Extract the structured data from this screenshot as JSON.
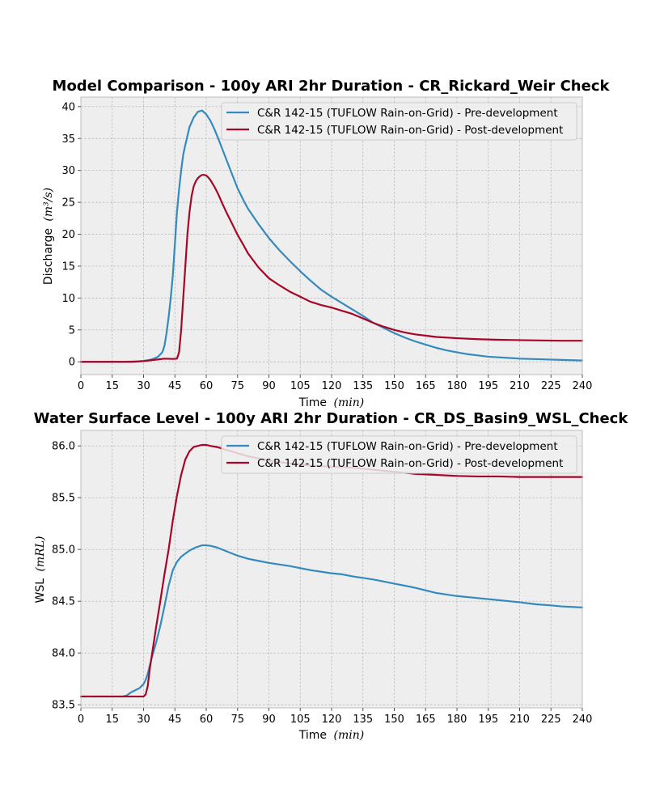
{
  "colors": {
    "pre": "#348abd",
    "post": "#a60628"
  },
  "chart_data": [
    {
      "type": "line",
      "title": "Model Comparison - 100y ARI 2hr Duration - CR_Rickard_Weir Check",
      "xlabel": "Time",
      "xlabel_unit": "(min)",
      "ylabel": "Discharge",
      "ylabel_unit": "(m³/s)",
      "xlim": [
        0,
        240
      ],
      "ylim": [
        -2,
        41.5
      ],
      "xticks": [
        0,
        15,
        30,
        45,
        60,
        75,
        90,
        105,
        120,
        135,
        150,
        165,
        180,
        195,
        210,
        225,
        240
      ],
      "yticks": [
        0,
        5,
        10,
        15,
        20,
        25,
        30,
        35,
        40
      ],
      "ytick_labels": [
        "0",
        "5",
        "10",
        "15",
        "20",
        "25",
        "30",
        "35",
        "40"
      ],
      "grid": true,
      "legend_position": "top-right",
      "series": [
        {
          "name": "C&R 142-15 (TUFLOW Rain-on-Grid) - Pre-development",
          "color_key": "pre",
          "x": [
            0,
            20,
            25,
            28,
            30,
            33,
            35,
            37,
            39,
            40,
            41,
            42,
            43,
            44,
            45,
            46,
            47,
            48,
            49,
            50,
            52,
            54,
            56,
            58,
            60,
            62,
            64,
            66,
            68,
            70,
            72,
            75,
            78,
            80,
            85,
            90,
            95,
            100,
            105,
            110,
            115,
            120,
            125,
            130,
            135,
            140,
            145,
            150,
            155,
            160,
            165,
            170,
            175,
            180,
            185,
            190,
            195,
            200,
            210,
            220,
            230,
            240
          ],
          "y": [
            0,
            0,
            0.05,
            0.1,
            0.15,
            0.3,
            0.5,
            0.8,
            1.5,
            2.5,
            4.5,
            7,
            10,
            13.5,
            18.5,
            23.5,
            27,
            30,
            32.5,
            34,
            36.8,
            38.3,
            39.2,
            39.4,
            38.8,
            37.8,
            36.4,
            34.8,
            33.1,
            31.4,
            29.7,
            27.2,
            25.2,
            24,
            21.6,
            19.4,
            17.5,
            15.8,
            14.2,
            12.7,
            11.3,
            10.2,
            9.2,
            8.2,
            7.2,
            6.1,
            5.3,
            4.5,
            3.8,
            3.2,
            2.7,
            2.2,
            1.8,
            1.5,
            1.2,
            1,
            0.8,
            0.7,
            0.5,
            0.4,
            0.3,
            0.2
          ]
        },
        {
          "name": "C&R 142-15 (TUFLOW Rain-on-Grid) - Post-development",
          "color_key": "post",
          "x": [
            0,
            25,
            30,
            35,
            40,
            44,
            46,
            47,
            48,
            49,
            50,
            51,
            52,
            53,
            54,
            55,
            56,
            57,
            58,
            59,
            60,
            61,
            62,
            64,
            66,
            68,
            70,
            72,
            75,
            78,
            80,
            85,
            90,
            95,
            100,
            105,
            110,
            115,
            120,
            125,
            130,
            135,
            140,
            145,
            150,
            155,
            160,
            165,
            170,
            180,
            190,
            200,
            210,
            220,
            230,
            240
          ],
          "y": [
            0,
            0,
            0.1,
            0.3,
            0.5,
            0.45,
            0.5,
            1.5,
            5,
            10,
            15,
            20,
            23.5,
            26,
            27.5,
            28.3,
            28.8,
            29.1,
            29.3,
            29.3,
            29.2,
            28.9,
            28.5,
            27.4,
            26.1,
            24.6,
            23.2,
            21.9,
            19.9,
            18.2,
            17,
            14.8,
            13.1,
            12,
            11,
            10.2,
            9.4,
            8.9,
            8.5,
            8,
            7.5,
            6.8,
            6.1,
            5.5,
            5,
            4.6,
            4.3,
            4.1,
            3.9,
            3.7,
            3.55,
            3.45,
            3.4,
            3.35,
            3.3,
            3.3
          ]
        }
      ]
    },
    {
      "type": "line",
      "title": "Water Surface Level - 100y ARI 2hr Duration - CR_DS_Basin9_WSL_Check",
      "xlabel": "Time",
      "xlabel_unit": "(min)",
      "ylabel": "WSL",
      "ylabel_unit": "(mRL)",
      "xlim": [
        0,
        240
      ],
      "ylim": [
        83.47,
        86.15
      ],
      "xticks": [
        0,
        15,
        30,
        45,
        60,
        75,
        90,
        105,
        120,
        135,
        150,
        165,
        180,
        195,
        210,
        225,
        240
      ],
      "yticks": [
        83.5,
        84.0,
        84.5,
        85.0,
        85.5,
        86.0
      ],
      "ytick_labels": [
        "83.5",
        "84.0",
        "84.5",
        "85.0",
        "85.5",
        "86.0"
      ],
      "grid": true,
      "legend_position": "top-right",
      "series": [
        {
          "name": "C&R 142-15 (TUFLOW Rain-on-Grid) - Pre-development",
          "color_key": "pre",
          "x": [
            0,
            20,
            22,
            24,
            26,
            28,
            30,
            31,
            32,
            33,
            34,
            35,
            36,
            37,
            38,
            40,
            42,
            44,
            46,
            48,
            50,
            52,
            55,
            58,
            60,
            62,
            65,
            70,
            75,
            80,
            85,
            90,
            100,
            110,
            120,
            125,
            130,
            140,
            150,
            160,
            170,
            180,
            190,
            200,
            210,
            218,
            225,
            230,
            240
          ],
          "y": [
            83.58,
            83.58,
            83.59,
            83.62,
            83.64,
            83.66,
            83.7,
            83.74,
            83.8,
            83.88,
            83.96,
            84.03,
            84.1,
            84.18,
            84.26,
            84.45,
            84.65,
            84.8,
            84.88,
            84.93,
            84.96,
            84.99,
            85.02,
            85.04,
            85.04,
            85.035,
            85.02,
            84.98,
            84.94,
            84.91,
            84.89,
            84.87,
            84.84,
            84.8,
            84.77,
            84.76,
            84.74,
            84.71,
            84.67,
            84.63,
            84.58,
            84.55,
            84.53,
            84.51,
            84.49,
            84.47,
            84.46,
            84.45,
            84.44
          ]
        },
        {
          "name": "C&R 142-15 (TUFLOW Rain-on-Grid) - Post-development",
          "color_key": "post",
          "x": [
            0,
            20,
            25,
            30,
            31,
            32,
            33,
            34,
            36,
            38,
            40,
            42,
            44,
            46,
            48,
            50,
            52,
            54,
            56,
            58,
            60,
            62,
            65,
            70,
            75,
            80,
            85,
            90,
            100,
            110,
            120,
            130,
            140,
            150,
            160,
            170,
            180,
            190,
            200,
            210,
            220,
            230,
            240
          ],
          "y": [
            83.58,
            83.58,
            83.58,
            83.58,
            83.6,
            83.68,
            83.85,
            83.98,
            84.25,
            84.5,
            84.76,
            85.0,
            85.28,
            85.52,
            85.72,
            85.87,
            85.95,
            85.99,
            86.0,
            86.01,
            86.01,
            86.0,
            85.99,
            85.96,
            85.93,
            85.9,
            85.88,
            85.86,
            85.83,
            85.81,
            85.8,
            85.79,
            85.77,
            85.75,
            85.73,
            85.72,
            85.71,
            85.705,
            85.705,
            85.7,
            85.7,
            85.7,
            85.7
          ]
        }
      ]
    }
  ]
}
